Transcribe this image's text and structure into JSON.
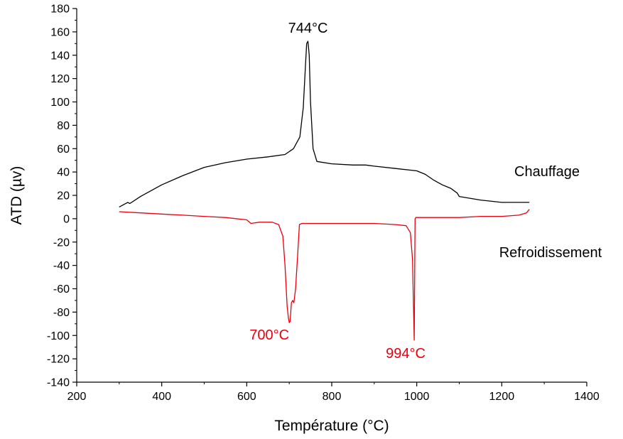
{
  "chart_data": {
    "type": "line",
    "xlabel": "Température (°C)",
    "ylabel": "ATD (µv)",
    "xlim": [
      200,
      1400
    ],
    "ylim": [
      -140,
      180
    ],
    "x_ticks": [
      200,
      400,
      600,
      800,
      1000,
      1200,
      1400
    ],
    "y_ticks": [
      -140,
      -120,
      -100,
      -80,
      -60,
      -40,
      -20,
      0,
      20,
      40,
      60,
      80,
      100,
      120,
      140,
      160,
      180
    ],
    "grid": false,
    "series": [
      {
        "name": "Chauffage",
        "color": "#000000",
        "x": [
          300,
          320,
          325,
          350,
          400,
          450,
          500,
          550,
          600,
          650,
          690,
          710,
          725,
          733,
          738,
          741,
          744,
          747,
          750,
          756,
          765,
          800,
          850,
          880,
          900,
          950,
          1000,
          1020,
          1040,
          1060,
          1080,
          1095,
          1100,
          1150,
          1200,
          1240,
          1265
        ],
        "y": [
          10,
          14,
          13,
          19,
          29,
          37,
          44,
          48,
          51,
          53,
          55,
          60,
          70,
          95,
          130,
          150,
          152,
          140,
          100,
          60,
          49,
          47,
          46,
          46,
          45,
          43,
          41,
          38,
          33,
          29,
          26,
          22,
          19,
          16,
          14,
          14,
          14
        ]
      },
      {
        "name": "Refroidissement",
        "color": "#e8000e",
        "x": [
          300,
          350,
          400,
          450,
          500,
          550,
          600,
          610,
          630,
          660,
          675,
          685,
          690,
          695,
          698,
          700,
          702,
          705,
          708,
          711,
          715,
          720,
          724,
          730,
          760,
          800,
          850,
          900,
          950,
          975,
          985,
          990,
          992,
          994,
          996,
          998,
          1000,
          1050,
          1100,
          1150,
          1200,
          1240,
          1258,
          1265
        ],
        "y": [
          6,
          5,
          4,
          3,
          2,
          1,
          -1,
          -4,
          -3,
          -3,
          -5,
          -15,
          -40,
          -75,
          -85,
          -89,
          -88,
          -72,
          -70,
          -72,
          -60,
          -30,
          -5,
          -4,
          -4,
          -4,
          -4,
          -4,
          -5,
          -6,
          -12,
          -35,
          -70,
          -104,
          0,
          1,
          1,
          1,
          1,
          2,
          2,
          3,
          5,
          8
        ]
      }
    ],
    "annotations": [
      {
        "text": "744°C",
        "x": 744,
        "y": 152,
        "color": "#000000"
      },
      {
        "text": "700°C",
        "x": 700,
        "y": -89,
        "color": "#e8000e"
      },
      {
        "text": "994°C",
        "x": 994,
        "y": -104,
        "color": "#e8000e"
      }
    ],
    "series_labels": [
      {
        "text": "Chauffage",
        "color": "#000000"
      },
      {
        "text": "Refroidissement",
        "color": "#000000"
      }
    ]
  }
}
